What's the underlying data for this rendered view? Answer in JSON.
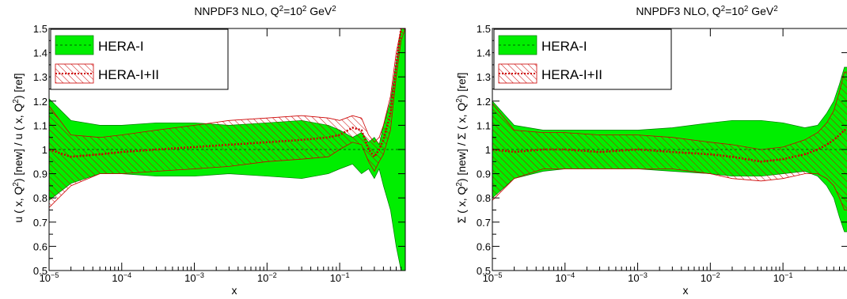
{
  "chart_data": [
    {
      "type": "area",
      "title": "NNPDF3 NLO, Q²=10² GeV²",
      "title_parts": {
        "pre": "NNPDF3 NLO, Q",
        "sup1": "2",
        "mid": "=10",
        "sup2": "2",
        "post": " GeV",
        "sup3": "2"
      },
      "xlabel": "x",
      "ylabel": "u ( x, Q²) [new] / u ( x, Q²) [ref]",
      "ylabel_parts": {
        "pre": "u ( x, Q",
        "sup1": "2",
        "mid": ") [new] / u ( x, Q",
        "sup2": "2",
        "post": ") [ref]"
      },
      "xscale": "log",
      "xlim": [
        1e-05,
        0.8
      ],
      "ylim": [
        0.5,
        1.5
      ],
      "xticks": [
        {
          "b": "10",
          "e": "−5"
        },
        {
          "b": "10",
          "e": "−4"
        },
        {
          "b": "10",
          "e": "−3"
        },
        {
          "b": "10",
          "e": "−2"
        },
        {
          "b": "10",
          "e": "−1"
        }
      ],
      "yticks": [
        "0.5",
        "0.6",
        "0.7",
        "0.8",
        "0.9",
        "1",
        "1.1",
        "1.2",
        "1.3",
        "1.4",
        "1.5"
      ],
      "legend": {
        "placement": "top-left",
        "entries": [
          "HERA-I",
          "HERA-I+II"
        ]
      },
      "series": [
        {
          "name": "HERA-I",
          "color": "#00ee00",
          "x": [
            1e-05,
            2e-05,
            5e-05,
            0.0001,
            0.0003,
            0.001,
            0.003,
            0.01,
            0.03,
            0.07,
            0.1,
            0.15,
            0.2,
            0.25,
            0.3,
            0.35,
            0.4,
            0.5,
            0.6,
            0.7,
            0.8
          ],
          "upper": [
            1.21,
            1.12,
            1.1,
            1.1,
            1.11,
            1.11,
            1.1,
            1.11,
            1.12,
            1.1,
            1.08,
            1.05,
            1.07,
            1.03,
            1.05,
            1.02,
            1.1,
            1.2,
            1.36,
            1.5,
            1.5
          ],
          "lower": [
            0.79,
            0.86,
            0.9,
            0.9,
            0.89,
            0.89,
            0.9,
            0.89,
            0.88,
            0.9,
            0.92,
            0.94,
            0.9,
            0.92,
            0.88,
            0.92,
            0.85,
            0.75,
            0.6,
            0.5,
            0.5
          ]
        },
        {
          "name": "HERA-I+II",
          "color": "#cc0000",
          "x": [
            1e-05,
            2e-05,
            5e-05,
            0.0001,
            0.0003,
            0.001,
            0.003,
            0.01,
            0.03,
            0.07,
            0.1,
            0.15,
            0.2,
            0.25,
            0.3,
            0.35,
            0.4,
            0.5,
            0.6,
            0.7,
            0.8
          ],
          "central": [
            1.0,
            0.97,
            0.98,
            0.99,
            1.0,
            1.01,
            1.02,
            1.03,
            1.04,
            1.05,
            1.06,
            1.09,
            1.08,
            1.0,
            0.97,
            1.0,
            1.04,
            1.15,
            1.35,
            1.5,
            1.5
          ],
          "upper": [
            1.18,
            1.06,
            1.05,
            1.06,
            1.08,
            1.1,
            1.12,
            1.13,
            1.14,
            1.13,
            1.12,
            1.14,
            1.13,
            1.06,
            1.03,
            1.05,
            1.1,
            1.22,
            1.4,
            1.5,
            1.5
          ],
          "lower": [
            0.76,
            0.85,
            0.9,
            0.9,
            0.91,
            0.92,
            0.93,
            0.95,
            0.96,
            0.97,
            1.0,
            1.03,
            1.02,
            0.95,
            0.91,
            0.95,
            0.98,
            1.08,
            1.3,
            1.45,
            1.5
          ]
        }
      ]
    },
    {
      "type": "area",
      "title": "NNPDF3 NLO, Q²=10² GeV²",
      "title_parts": {
        "pre": "NNPDF3 NLO, Q",
        "sup1": "2",
        "mid": "=10",
        "sup2": "2",
        "post": " GeV",
        "sup3": "2"
      },
      "xlabel": "x",
      "ylabel": "Σ ( x, Q²) [new] / Σ ( x, Q²) [ref]",
      "ylabel_parts": {
        "pre": "Σ ( x, Q",
        "sup1": "2",
        "mid": ") [new] / Σ ( x, Q",
        "sup2": "2",
        "post": ") [ref]"
      },
      "xscale": "log",
      "xlim": [
        1e-05,
        0.8
      ],
      "ylim": [
        0.5,
        1.5
      ],
      "xticks": [
        {
          "b": "10",
          "e": "−5"
        },
        {
          "b": "10",
          "e": "−4"
        },
        {
          "b": "10",
          "e": "−3"
        },
        {
          "b": "10",
          "e": "−2"
        },
        {
          "b": "10",
          "e": "−1"
        }
      ],
      "yticks": [
        "0.5",
        "0.6",
        "0.7",
        "0.8",
        "0.9",
        "1",
        "1.1",
        "1.2",
        "1.3",
        "1.4",
        "1.5"
      ],
      "legend": {
        "placement": "top-left",
        "entries": [
          "HERA-I",
          "HERA-I+II"
        ]
      },
      "series": [
        {
          "name": "HERA-I",
          "color": "#00ee00",
          "x": [
            1e-05,
            2e-05,
            5e-05,
            0.0001,
            0.0003,
            0.001,
            0.003,
            0.01,
            0.02,
            0.05,
            0.1,
            0.2,
            0.3,
            0.4,
            0.5,
            0.6,
            0.7,
            0.8
          ],
          "upper": [
            1.2,
            1.1,
            1.08,
            1.08,
            1.08,
            1.08,
            1.09,
            1.11,
            1.12,
            1.12,
            1.11,
            1.09,
            1.1,
            1.15,
            1.2,
            1.27,
            1.34,
            1.34
          ],
          "lower": [
            0.8,
            0.88,
            0.91,
            0.92,
            0.92,
            0.92,
            0.91,
            0.9,
            0.89,
            0.89,
            0.9,
            0.91,
            0.89,
            0.85,
            0.8,
            0.72,
            0.66,
            0.66
          ]
        },
        {
          "name": "HERA-I+II",
          "color": "#cc0000",
          "x": [
            1e-05,
            2e-05,
            5e-05,
            0.0001,
            0.0003,
            0.001,
            0.003,
            0.01,
            0.02,
            0.05,
            0.1,
            0.2,
            0.3,
            0.4,
            0.5,
            0.6,
            0.7,
            0.8
          ],
          "central": [
            1.0,
            0.99,
            1.0,
            1.0,
            0.99,
            1.0,
            0.99,
            0.98,
            0.97,
            0.95,
            0.96,
            0.98,
            1.0,
            1.02,
            1.04,
            1.06,
            1.08,
            1.08
          ],
          "upper": [
            1.19,
            1.08,
            1.07,
            1.07,
            1.06,
            1.06,
            1.05,
            1.03,
            1.02,
            1.0,
            1.01,
            1.04,
            1.07,
            1.11,
            1.16,
            1.24,
            1.32,
            1.32
          ],
          "lower": [
            0.79,
            0.88,
            0.92,
            0.92,
            0.92,
            0.92,
            0.92,
            0.9,
            0.88,
            0.87,
            0.88,
            0.9,
            0.9,
            0.88,
            0.85,
            0.8,
            0.75,
            0.75
          ]
        }
      ]
    }
  ]
}
